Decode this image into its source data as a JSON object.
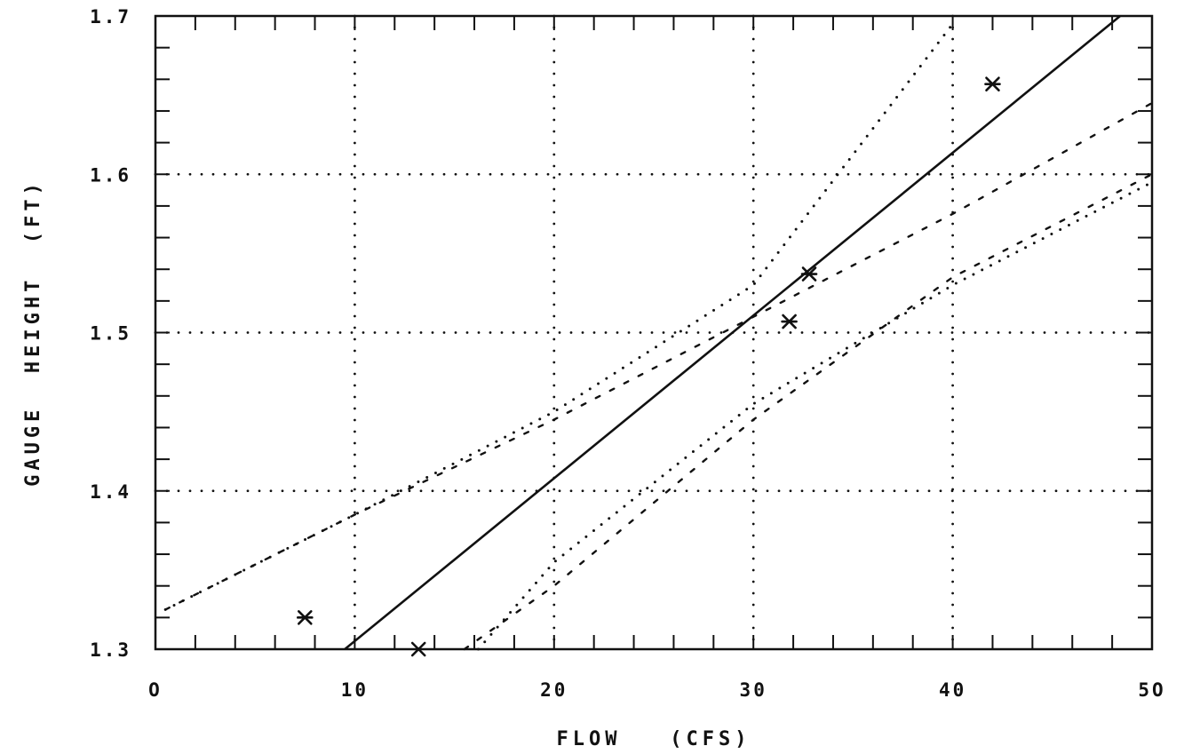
{
  "chart_data": {
    "type": "line",
    "title": "",
    "xlabel": "FLOW   (CFS)",
    "ylabel": "GAUGE  HEIGHT  (FT)",
    "xlim": [
      0,
      50
    ],
    "ylim": [
      1.3,
      1.7
    ],
    "x_ticks": [
      0,
      10,
      20,
      30,
      40,
      50
    ],
    "x_tick_labels": [
      "O",
      "10",
      "20",
      "30",
      "40",
      "5O"
    ],
    "y_ticks": [
      1.3,
      1.4,
      1.5,
      1.6,
      1.7
    ],
    "y_tick_labels": [
      "1.3",
      "1.4",
      "1.5",
      "1.6",
      "1.7"
    ],
    "grid": true,
    "grid_style": "dotted",
    "legend": "none",
    "colors": {
      "ink": "#111111",
      "background": "#ffffff"
    },
    "series": [
      {
        "style": "solid",
        "x": [
          9.5,
          48.4
        ],
        "y": [
          1.3,
          1.7
        ]
      },
      {
        "style": "dashed",
        "x": [
          0.5,
          10,
          20,
          30,
          40,
          50
        ],
        "y": [
          1.325,
          1.385,
          1.445,
          1.51,
          1.575,
          1.645
        ]
      },
      {
        "style": "dashed",
        "x": [
          15.5,
          20,
          30,
          40,
          50
        ],
        "y": [
          1.3,
          1.34,
          1.445,
          1.535,
          1.6
        ]
      },
      {
        "style": "dotted",
        "x": [
          0.5,
          10,
          20,
          30,
          40
        ],
        "y": [
          1.325,
          1.385,
          1.45,
          1.53,
          1.695
        ]
      },
      {
        "style": "dotted",
        "x": [
          16.2,
          20,
          30,
          40,
          50
        ],
        "y": [
          1.3,
          1.355,
          1.455,
          1.53,
          1.595
        ]
      }
    ],
    "points": [
      {
        "x": 7.5,
        "y": 1.32,
        "marker": "*"
      },
      {
        "x": 13.2,
        "y": 1.3,
        "marker": "x"
      },
      {
        "x": 31.8,
        "y": 1.507,
        "marker": "*"
      },
      {
        "x": 32.8,
        "y": 1.537,
        "marker": "*"
      },
      {
        "x": 42.0,
        "y": 1.657,
        "marker": "*"
      }
    ]
  }
}
